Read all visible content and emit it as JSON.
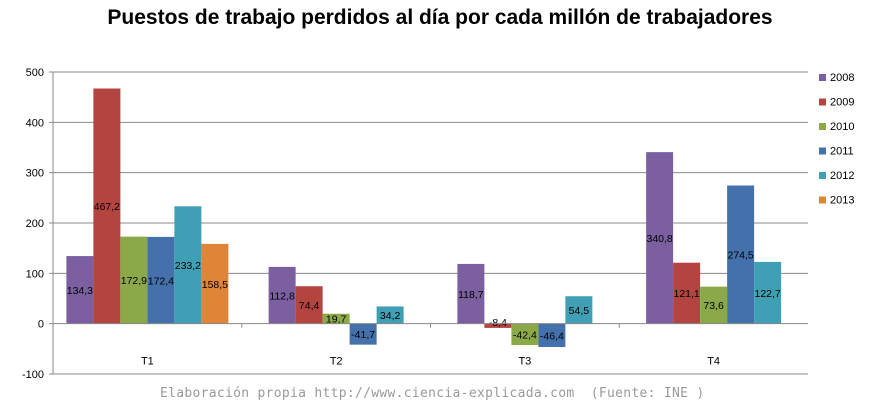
{
  "chart_data": {
    "type": "bar",
    "title": "Puestos de trabajo perdidos al día por cada millón de trabajadores",
    "xlabel": "",
    "ylabel": "",
    "ylim": [
      -100,
      500
    ],
    "yticks": [
      -100,
      0,
      100,
      200,
      300,
      400,
      500
    ],
    "categories": [
      "T1",
      "T2",
      "T3",
      "T4"
    ],
    "series": [
      {
        "name": "2008",
        "color": "#7B5FA1",
        "values": [
          134.3,
          112.8,
          118.7,
          340.8
        ],
        "labels": [
          "134,3",
          "112,8",
          "118,7",
          "340,8"
        ]
      },
      {
        "name": "2009",
        "color": "#B3443F",
        "values": [
          467.2,
          74.4,
          -8.4,
          121.1
        ],
        "labels": [
          "467,2",
          "74,4",
          "-8,4",
          "121,1"
        ]
      },
      {
        "name": "2010",
        "color": "#8CA94A",
        "values": [
          172.9,
          19.7,
          -42.4,
          73.6
        ],
        "labels": [
          "172,9",
          "19,7",
          "-42,4",
          "73,6"
        ]
      },
      {
        "name": "2011",
        "color": "#4470AC",
        "values": [
          172.4,
          -41.7,
          -46.4,
          274.5
        ],
        "labels": [
          "172,4",
          "-41,7",
          "-46,4",
          "274,5"
        ]
      },
      {
        "name": "2012",
        "color": "#3FA0B5",
        "values": [
          233.2,
          34.2,
          54.5,
          122.7
        ],
        "labels": [
          "233,2",
          "34,2",
          "54,5",
          "122,7"
        ]
      },
      {
        "name": "2013",
        "color": "#E0843A",
        "values": [
          158.5,
          null,
          null,
          null
        ],
        "labels": [
          "158,5",
          "",
          "",
          ""
        ]
      }
    ],
    "legend_position": "right",
    "grid": true
  },
  "footer": {
    "source": "Elaboración propia http://www.ciencia-explicada.com  (Fuente: INE )"
  }
}
